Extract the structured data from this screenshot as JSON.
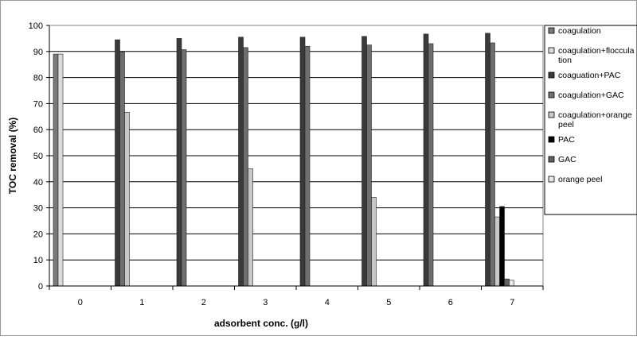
{
  "chart_data": {
    "type": "bar",
    "xlabel": "adsorbent conc. (g/l)",
    "ylabel": "TOC removal (%)",
    "ylim": [
      0,
      100
    ],
    "yticks": [
      0,
      10,
      20,
      30,
      40,
      50,
      60,
      70,
      80,
      90,
      100
    ],
    "grid": true,
    "legend_position": "right",
    "categories": [
      "0",
      "1",
      "2",
      "3",
      "4",
      "5",
      "6",
      "7"
    ],
    "series": [
      {
        "name": "coagulation",
        "color": "#7a7a7a",
        "values": [
          89,
          null,
          null,
          null,
          null,
          null,
          null,
          null
        ]
      },
      {
        "name": "coagulation+flocculation",
        "color": "#dcdcdc",
        "values": [
          89,
          null,
          null,
          null,
          null,
          null,
          null,
          null
        ]
      },
      {
        "name": "coaguation+PAC",
        "color": "#3a3a3a",
        "values": [
          null,
          94.5,
          95,
          95.5,
          95.5,
          95.8,
          96.7,
          97
        ]
      },
      {
        "name": "coagulation+GAC",
        "color": "#6e6e6e",
        "values": [
          null,
          89.8,
          90.7,
          91.5,
          92,
          92.5,
          93,
          93.3
        ]
      },
      {
        "name": "coagulation+orange peel",
        "color": "#c8c8c8",
        "values": [
          null,
          66.7,
          null,
          45,
          null,
          34,
          null,
          26.5
        ]
      },
      {
        "name": "PAC",
        "color": "#000000",
        "values": [
          null,
          null,
          null,
          null,
          null,
          null,
          null,
          30.5
        ]
      },
      {
        "name": "GAC",
        "color": "#606060",
        "values": [
          null,
          null,
          null,
          null,
          null,
          null,
          null,
          2.7
        ]
      },
      {
        "name": "orange peel",
        "color": "#e8e8e8",
        "values": [
          null,
          null,
          null,
          null,
          null,
          null,
          null,
          2.2
        ]
      }
    ],
    "legend": [
      {
        "label_lines": [
          "coagulation"
        ],
        "color": "#7a7a7a"
      },
      {
        "label_lines": [
          "coagulation+floccula",
          "tion"
        ],
        "color": "#dcdcdc"
      },
      {
        "label_lines": [
          "coaguation+PAC"
        ],
        "color": "#3a3a3a"
      },
      {
        "label_lines": [
          "coagulation+GAC"
        ],
        "color": "#6e6e6e"
      },
      {
        "label_lines": [
          "coagulation+orange",
          "peel"
        ],
        "color": "#c8c8c8"
      },
      {
        "label_lines": [
          "PAC"
        ],
        "color": "#000000"
      },
      {
        "label_lines": [
          "GAC"
        ],
        "color": "#606060"
      },
      {
        "label_lines": [
          "orange peel"
        ],
        "color": "#e8e8e8"
      }
    ]
  }
}
